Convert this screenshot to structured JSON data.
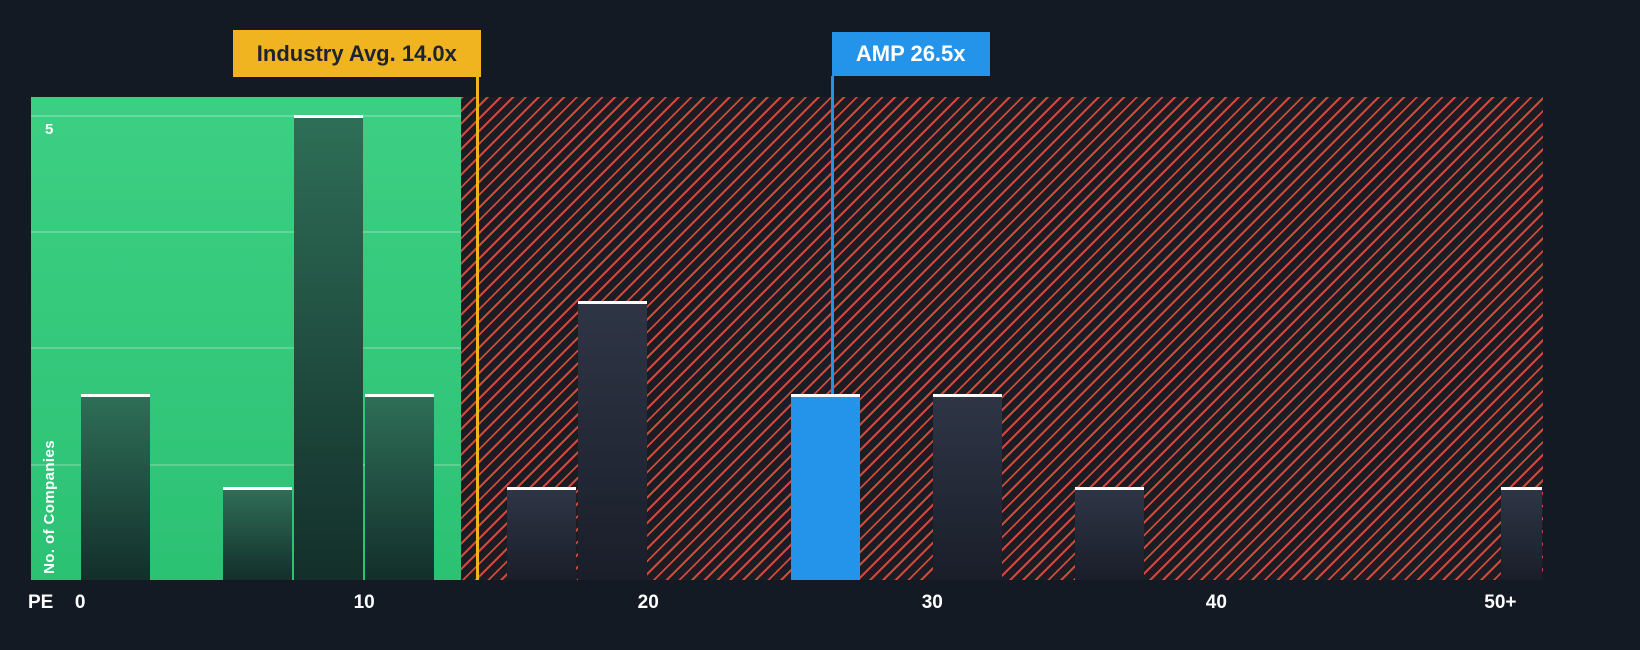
{
  "chart_data": {
    "type": "bar",
    "xlabel": "PE",
    "ylabel": "No. of Companies",
    "x_tick_labels": [
      "0",
      "10",
      "20",
      "30",
      "40",
      "50+"
    ],
    "x_tick_values": [
      0,
      10,
      20,
      30,
      40,
      50
    ],
    "xlim": [
      -1.73,
      51.5
    ],
    "ylim": [
      0,
      5.19
    ],
    "y_gridlines": [
      1.25,
      2.5,
      3.75,
      5
    ],
    "y_top_tick_label": "5",
    "zone_boundary": 13.4,
    "bin_width": 2.5,
    "grid": true,
    "legend_position": "none",
    "industry_avg": {
      "value": 14.0,
      "label": "Industry Avg. 14.0x"
    },
    "company": {
      "name": "AMP",
      "value": 26.5,
      "label": "AMP 26.5x"
    },
    "bars": [
      {
        "x": 0,
        "count": 2,
        "zone": "below"
      },
      {
        "x": 5,
        "count": 1,
        "zone": "below"
      },
      {
        "x": 7.5,
        "count": 5,
        "zone": "below"
      },
      {
        "x": 10,
        "count": 2,
        "zone": "below"
      },
      {
        "x": 15,
        "count": 1,
        "zone": "above"
      },
      {
        "x": 17.5,
        "count": 3,
        "zone": "above"
      },
      {
        "x": 25,
        "count": 2,
        "zone": "company"
      },
      {
        "x": 30,
        "count": 2,
        "zone": "above"
      },
      {
        "x": 35,
        "count": 1,
        "zone": "above"
      },
      {
        "x": 50,
        "count": 1,
        "zone": "above"
      }
    ],
    "colors": {
      "background": "#131a23",
      "green_zone": "#2ecc7a",
      "hatch_red": "#e04f3c",
      "company_blue": "#2493ea",
      "industry_yellow": "#efb41f",
      "bar_top": "#ffffff",
      "bar_below_top": "#2e6e57",
      "bar_below_bottom": "#132f2a",
      "bar_above_top": "#2e3545",
      "bar_above_bottom": "#191e29"
    }
  }
}
